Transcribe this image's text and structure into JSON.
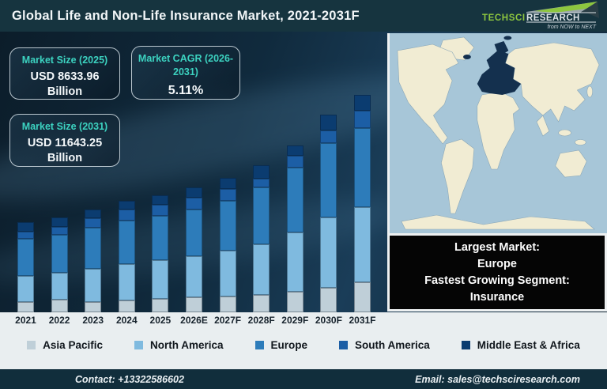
{
  "header": {
    "title": "Global Life and Non-Life Insurance Market, 2021-2031F",
    "brand": {
      "name_primary": "TechSci",
      "name_secondary": "Research",
      "tagline": "from NOW to NEXT",
      "green": "#8dc63f",
      "silver": "#dde4e8"
    }
  },
  "info_boxes": [
    {
      "title": "Market Size (2025)",
      "value": "USD 8633.96",
      "unit": "Billion"
    },
    {
      "title": "Market CAGR (2026-2031)",
      "value": "5.11%",
      "unit": ""
    },
    {
      "title": "Market Size (2031)",
      "value": "USD 11643.25",
      "unit": "Billion"
    }
  ],
  "callout": {
    "lines": [
      "Largest Market:",
      "Europe",
      "Fastest Growing Segment:",
      "Insurance"
    ]
  },
  "map": {
    "ocean_color": "#a7c6d8",
    "land_color": "#f1ecd3",
    "europe_color": "#14304e"
  },
  "footer": {
    "contact": "Contact: +13322586602",
    "email": "Email: sales@techsciresearch.com"
  },
  "colors": {
    "header_bg": "#16343f",
    "chart_bg_top": "#0c1d2a",
    "chart_bg_bottom": "#1a3d58",
    "accent_teal": "#3cd2c0",
    "strip_bg": "#e9eef0",
    "footer_bg": "#112e3c"
  },
  "chart_data": {
    "type": "bar",
    "stacked": true,
    "title": "Global Life and Non-Life Insurance Market, 2021-2031F",
    "categories": [
      "2021",
      "2022",
      "2023",
      "2024",
      "2025",
      "2026E",
      "2027F",
      "2028F",
      "2029F",
      "2030F",
      "2031F"
    ],
    "series": [
      {
        "name": "Asia Pacific",
        "color": "#bfcfd8",
        "values": [
          13,
          16,
          13,
          15,
          17,
          19,
          20,
          22,
          26,
          31,
          38
        ]
      },
      {
        "name": "North America",
        "color": "#7fbadf",
        "values": [
          33,
          34,
          42,
          46,
          49,
          52,
          58,
          64,
          75,
          89,
          95
        ]
      },
      {
        "name": "Europe",
        "color": "#2d7cba",
        "values": [
          47,
          48,
          52,
          55,
          56,
          59,
          63,
          72,
          82,
          94,
          100
        ]
      },
      {
        "name": "South America",
        "color": "#1c5ea5",
        "values": [
          9,
          10,
          12,
          14,
          14,
          15,
          15,
          11,
          15,
          16,
          22
        ]
      },
      {
        "name": "Middle East & Africa",
        "color": "#0b3c70",
        "values": [
          12,
          12,
          11,
          11,
          12,
          13,
          14,
          17,
          13,
          20,
          20
        ]
      }
    ],
    "value_units": "relative stacked heights (no y-axis shown in figure)",
    "annotations": [
      "Market Size (2025): USD 8633.96 Billion",
      "Market CAGR (2026-2031): 5.11%",
      "Market Size (2031): USD 11643.25 Billion"
    ],
    "legend_position": "bottom",
    "grid": false,
    "y_axis_visible": false
  }
}
